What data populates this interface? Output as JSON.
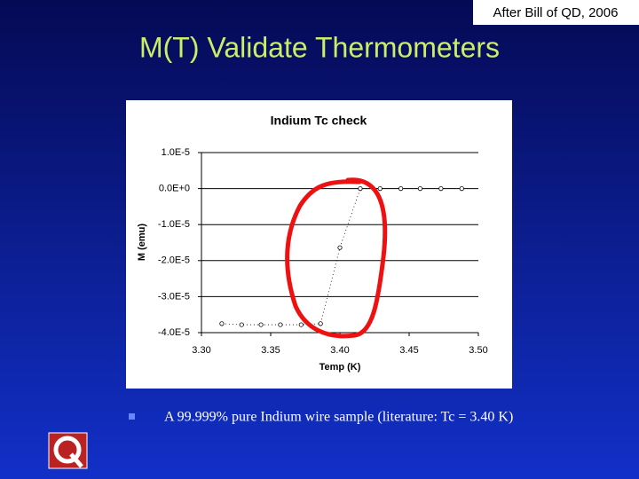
{
  "header": {
    "credit": "After Bill of QD, 2006",
    "title": "M(T) Validate Thermometers"
  },
  "chart_data": {
    "type": "scatter",
    "title": "Indium Tc check",
    "x_label": "Temp (K)",
    "y_label": "M (emu)",
    "x": [
      3.3147,
      3.329,
      3.343,
      3.357,
      3.372,
      3.386,
      3.4,
      3.4147,
      3.429,
      3.444,
      3.458,
      3.473,
      3.488
    ],
    "series": [
      {
        "name": "M",
        "color": "#000000",
        "values": [
          -3.75e-05,
          -3.78e-05,
          -3.78e-05,
          -3.78e-05,
          -3.78e-05,
          -3.75e-05,
          -1.64e-05,
          0.0,
          0.0,
          0.0,
          0.0,
          0.0,
          0.0
        ]
      }
    ],
    "xlim": [
      3.3,
      3.5
    ],
    "xticks": [
      {
        "value": 3.3,
        "label": "3.30"
      },
      {
        "value": 3.35,
        "label": "3.35"
      },
      {
        "value": 3.4,
        "label": "3.40"
      },
      {
        "value": 3.45,
        "label": "3.45"
      },
      {
        "value": 3.5,
        "label": "3.50"
      }
    ],
    "ylim": [
      -4e-05,
      1e-05
    ],
    "yticks": [
      {
        "value": 1e-05,
        "label": "1.0E-5"
      },
      {
        "value": 0,
        "label": "0.0E+0"
      },
      {
        "value": -1e-05,
        "label": "-1.0E-5"
      },
      {
        "value": -2e-05,
        "label": "-2.0E-5"
      },
      {
        "value": -3e-05,
        "label": "-3.0E-5"
      },
      {
        "value": -4e-05,
        "label": "-4.0E-5"
      }
    ],
    "grid": true
  },
  "bullet": {
    "text": "A 99.999% pure Indium wire sample (literature: Tc = 3.40 K)"
  }
}
